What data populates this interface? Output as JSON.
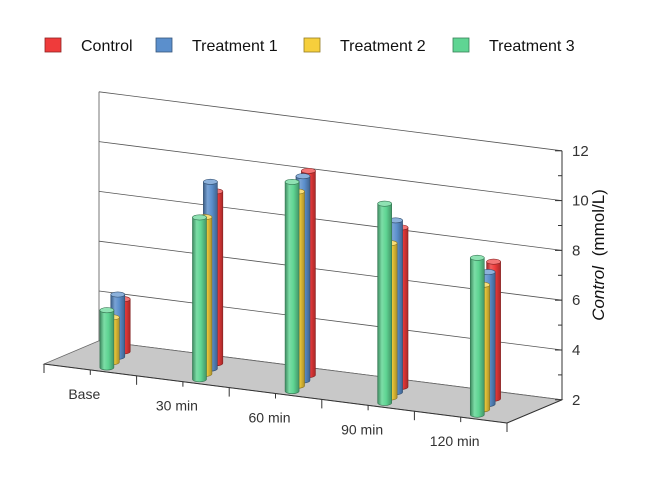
{
  "chart_data": {
    "type": "bar",
    "variant": "3d-cylinder-clustered",
    "title": "",
    "categories": [
      "Base",
      "30 min",
      "60 min",
      "90 min",
      "120 min"
    ],
    "series": [
      {
        "name": "Control",
        "color": "#ef3b3b",
        "values": [
          4.1,
          8.9,
          10.2,
          8.4,
          7.5
        ]
      },
      {
        "name": "Treatment 1",
        "color": "#5b8fcc",
        "values": [
          4.5,
          9.5,
          10.2,
          8.9,
          7.3
        ]
      },
      {
        "name": "Treatment 2",
        "color": "#f6cf3c",
        "values": [
          3.8,
          8.3,
          9.8,
          8.2,
          7.0
        ]
      },
      {
        "name": "Treatment 3",
        "color": "#5fd593",
        "values": [
          4.3,
          8.5,
          10.4,
          10.0,
          8.3
        ]
      }
    ],
    "ylabel_prefix": "Control",
    "ylabel_unit": "(mmol/L)",
    "yticks": [
      "2",
      "4",
      "6",
      "8",
      "10",
      "12"
    ],
    "ylim": [
      2,
      12
    ],
    "legend_position": "top",
    "grid": true
  }
}
